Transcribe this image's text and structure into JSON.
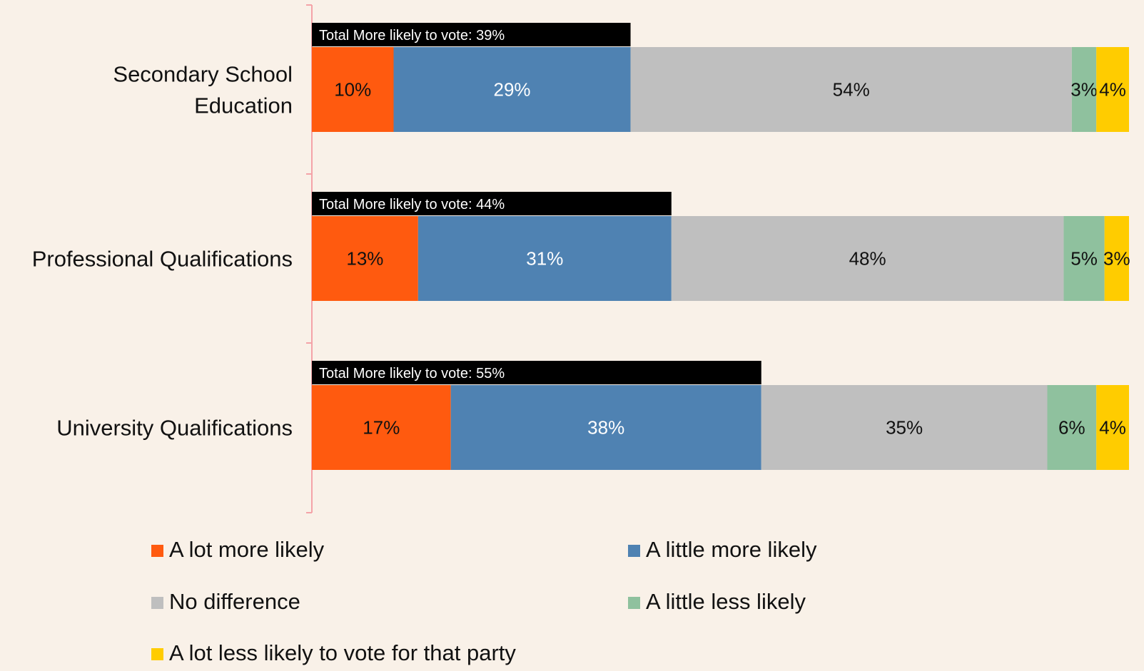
{
  "chart_data": {
    "type": "bar",
    "orientation": "horizontal",
    "stacked": true,
    "categories": [
      "Secondary School Education",
      "Professional Qualifications",
      "University Qualifications"
    ],
    "category_lines": [
      [
        "Secondary School",
        "Education"
      ],
      [
        "Professional Qualifications"
      ],
      [
        "University Qualifications"
      ]
    ],
    "series": [
      {
        "name": "A lot more likely",
        "color": "#ff5a0f",
        "text_color": "#111111",
        "values": [
          10,
          13,
          17
        ]
      },
      {
        "name": "A little more likely",
        "color": "#4f82b2",
        "text_color": "#ffffff",
        "values": [
          29,
          31,
          38
        ]
      },
      {
        "name": "No difference",
        "color": "#bfbfbf",
        "text_color": "#111111",
        "values": [
          54,
          48,
          35
        ]
      },
      {
        "name": "A little less likely",
        "color": "#8fc19e",
        "text_color": "#111111",
        "values": [
          3,
          5,
          6
        ]
      },
      {
        "name": "A lot less likely to vote for that party",
        "color": "#ffcc00",
        "text_color": "#111111",
        "values": [
          4,
          3,
          4
        ]
      }
    ],
    "data_labels": [
      [
        "10%",
        "29%",
        "54%",
        "3%",
        "4%"
      ],
      [
        "13%",
        "31%",
        "48%",
        "5%",
        "3%"
      ],
      [
        "17%",
        "38%",
        "35%",
        "6%",
        "4%"
      ]
    ],
    "totals": [
      {
        "label": "Total More likely to vote: 39%",
        "value": 39
      },
      {
        "label": "Total More likely to vote: 44%",
        "value": 44
      },
      {
        "label": "Total More likely to vote: 55%",
        "value": 55
      }
    ],
    "xlim": [
      0,
      100
    ],
    "grid": false,
    "legend_position": "bottom",
    "axis_color": "#f4a3a8",
    "total_bar_color": "#000000"
  }
}
